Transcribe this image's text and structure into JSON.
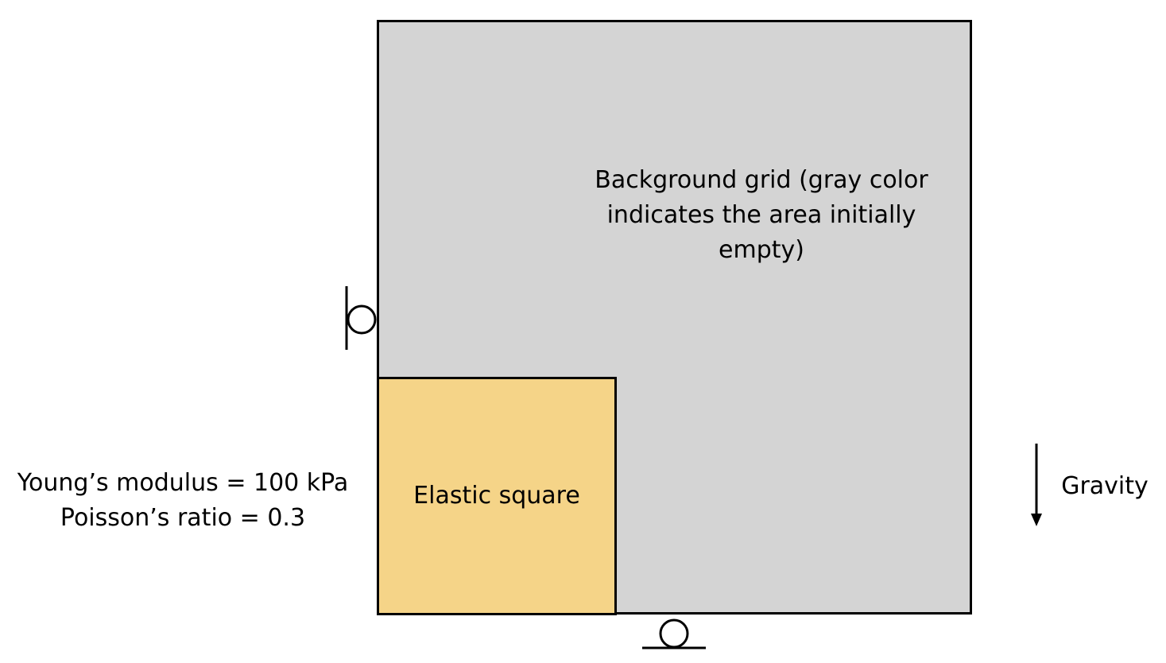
{
  "background_grid": {
    "label": "Background grid (gray color indicates the area initially empty)",
    "fill": "#d4d4d4"
  },
  "elastic_square": {
    "label": "Elastic square",
    "fill": "#f5d488"
  },
  "material": {
    "youngs_modulus": "Young’s modulus = 100 kPa",
    "poissons_ratio": "Poisson’s ratio = 0.3"
  },
  "gravity": {
    "label": "Gravity",
    "icon": "down-arrow-icon"
  },
  "supports": {
    "left": "roller-support-icon",
    "bottom": "roller-support-icon"
  }
}
